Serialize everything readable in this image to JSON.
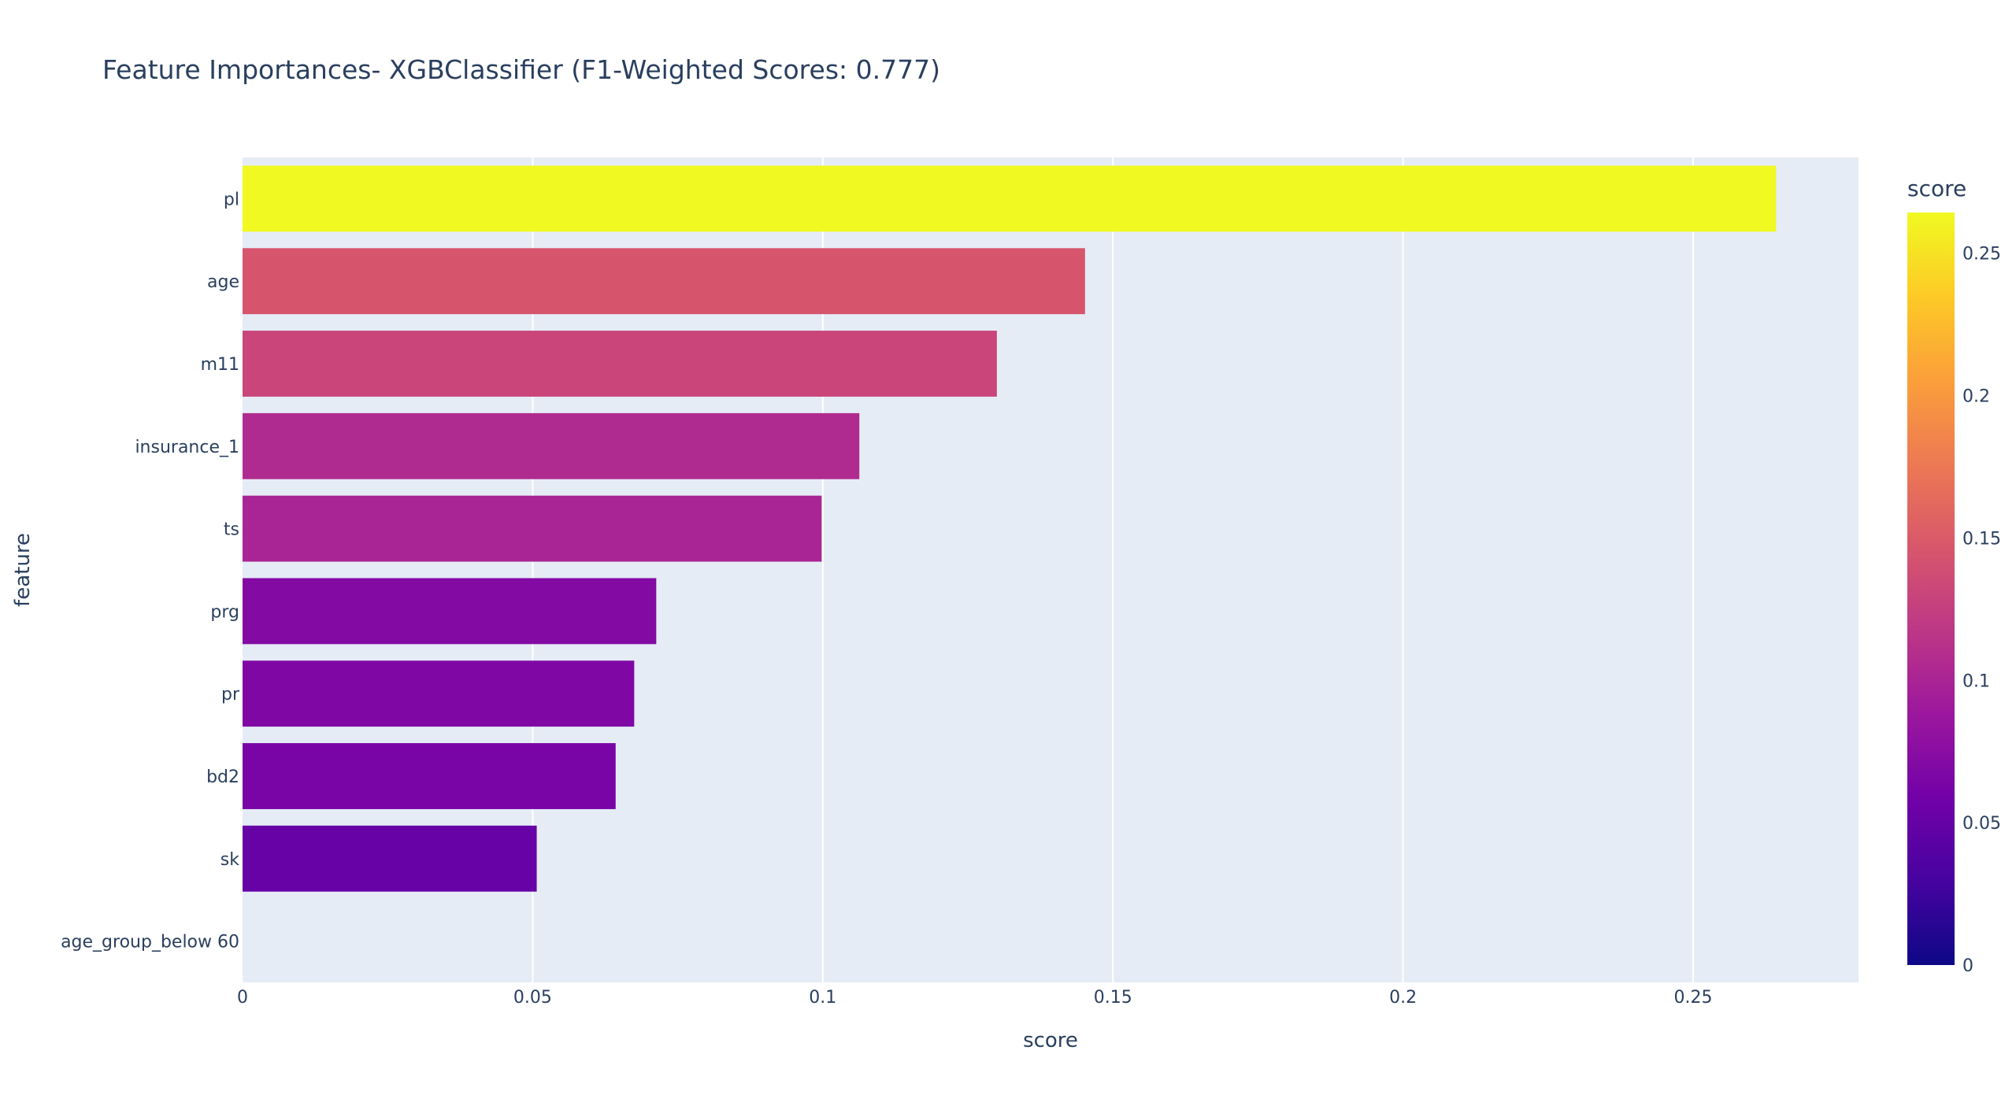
{
  "chart_data": {
    "type": "bar",
    "orientation": "horizontal",
    "title": "Feature Importances- XGBClassifier (F1-Weighted Scores: 0.777)",
    "xlabel": "score",
    "ylabel": "feature",
    "xlim": [
      0,
      0.2785
    ],
    "x_ticks": [
      0,
      0.05,
      0.1,
      0.15,
      0.2,
      0.25
    ],
    "x_tick_labels": [
      "0",
      "0.05",
      "0.1",
      "0.15",
      "0.2",
      "0.25"
    ],
    "grid": true,
    "categories": [
      "pl",
      "age",
      "m11",
      "insurance_1",
      "ts",
      "prg",
      "pr",
      "bd2",
      "sk",
      "age_group_below 60"
    ],
    "values": [
      0.2643,
      0.1452,
      0.13,
      0.1063,
      0.0998,
      0.0713,
      0.0675,
      0.0643,
      0.0507,
      0.0
    ],
    "colorscale": "plasma",
    "colorbar": {
      "title": "score",
      "range": [
        0,
        0.2643
      ],
      "ticks": [
        0,
        0.05,
        0.1,
        0.15,
        0.2,
        0.25
      ],
      "tick_labels": [
        "0",
        "0.05",
        "0.1",
        "0.15",
        "0.2",
        "0.25"
      ]
    },
    "plot_background": "#e5ecf6",
    "grid_color": "#ffffff",
    "text_color": "#2a3f5f"
  }
}
